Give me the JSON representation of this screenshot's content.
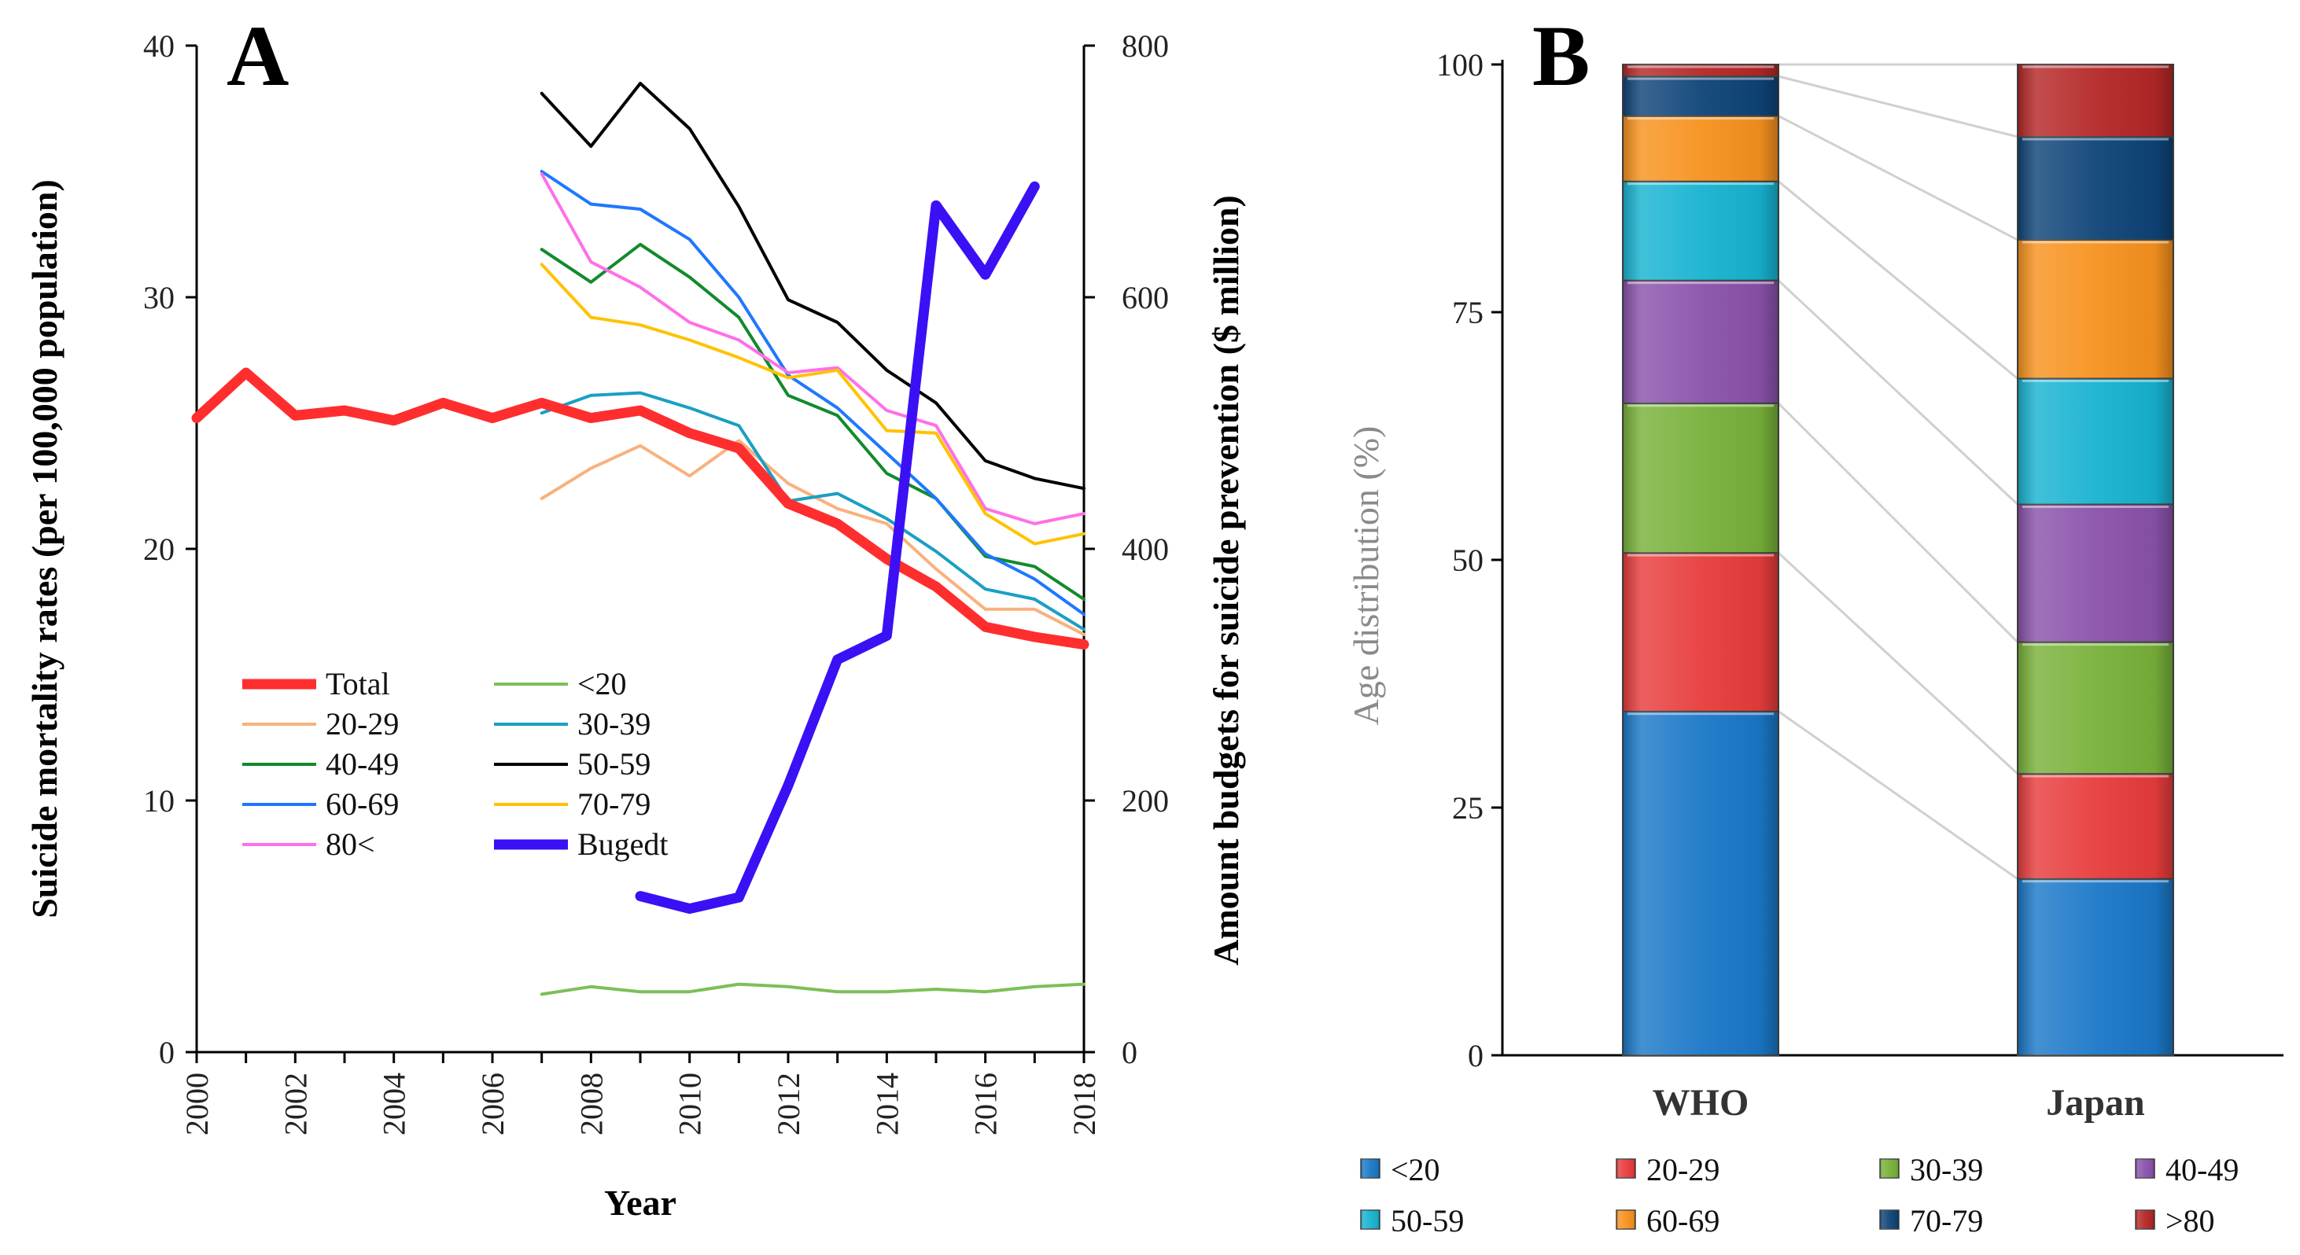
{
  "figure": {
    "panel_a_label": "A",
    "panel_b_label": "B"
  },
  "chart_data": [
    {
      "type": "line",
      "panel": "A",
      "xlabel": "Year",
      "ylabel": "Suicide mortality rates (per 100,000 population)",
      "y2label": "Amount budgets for suicide prevention ($ million)",
      "xlim": [
        2000,
        2018
      ],
      "ylim": [
        0,
        40
      ],
      "y2lim": [
        0,
        800
      ],
      "xticks": [
        2000,
        2002,
        2004,
        2006,
        2008,
        2010,
        2012,
        2014,
        2016,
        2018
      ],
      "yticks": [
        0,
        10,
        20,
        30,
        40
      ],
      "y2ticks": [
        0,
        200,
        400,
        600,
        800
      ],
      "series": [
        {
          "name": "Total",
          "color": "#ff2e2e",
          "thick": true,
          "axis": "left",
          "x": [
            2000,
            2001,
            2002,
            2003,
            2004,
            2005,
            2006,
            2007,
            2008,
            2009,
            2010,
            2011,
            2012,
            2013,
            2014,
            2015,
            2016,
            2017,
            2018
          ],
          "values": [
            25.2,
            27.0,
            25.3,
            25.5,
            25.1,
            25.8,
            25.2,
            25.8,
            25.2,
            25.5,
            24.6,
            24.0,
            21.8,
            21.0,
            19.6,
            18.5,
            16.9,
            16.5,
            16.2
          ]
        },
        {
          "name": "20-29",
          "color": "#f9b17e",
          "thick": false,
          "axis": "left",
          "x": [
            2007,
            2008,
            2009,
            2010,
            2011,
            2012,
            2013,
            2014,
            2015,
            2016,
            2017,
            2018
          ],
          "values": [
            22.0,
            23.2,
            24.1,
            22.9,
            24.3,
            22.6,
            21.6,
            21.0,
            19.2,
            17.6,
            17.6,
            16.6
          ]
        },
        {
          "name": "40-49",
          "color": "#128a2c",
          "thick": false,
          "axis": "left",
          "x": [
            2007,
            2008,
            2009,
            2010,
            2011,
            2012,
            2013,
            2014,
            2015,
            2016,
            2017,
            2018
          ],
          "values": [
            31.9,
            30.6,
            32.1,
            30.8,
            29.2,
            26.1,
            25.3,
            23.0,
            22.0,
            19.7,
            19.3,
            18.0
          ]
        },
        {
          "name": "60-69",
          "color": "#1f77ff",
          "thick": false,
          "axis": "left",
          "x": [
            2007,
            2008,
            2009,
            2010,
            2011,
            2012,
            2013,
            2014,
            2015,
            2016,
            2017,
            2018
          ],
          "values": [
            35.0,
            33.7,
            33.5,
            32.3,
            30.0,
            26.9,
            25.6,
            23.8,
            22.0,
            19.8,
            18.8,
            17.4
          ]
        },
        {
          "name": "80<",
          "color": "#ff6fe8",
          "thick": false,
          "axis": "left",
          "x": [
            2007,
            2008,
            2009,
            2010,
            2011,
            2012,
            2013,
            2014,
            2015,
            2016,
            2017,
            2018
          ],
          "values": [
            34.9,
            31.4,
            30.4,
            29.0,
            28.3,
            27.0,
            27.2,
            25.5,
            24.9,
            21.6,
            21.0,
            21.4
          ]
        },
        {
          "name": "<20",
          "color": "#7dbf58",
          "thick": false,
          "axis": "left",
          "x": [
            2007,
            2008,
            2009,
            2010,
            2011,
            2012,
            2013,
            2014,
            2015,
            2016,
            2017,
            2018
          ],
          "values": [
            2.3,
            2.6,
            2.4,
            2.4,
            2.7,
            2.6,
            2.4,
            2.4,
            2.5,
            2.4,
            2.6,
            2.7
          ]
        },
        {
          "name": "30-39",
          "color": "#1a9fc4",
          "thick": false,
          "axis": "left",
          "x": [
            2007,
            2008,
            2009,
            2010,
            2011,
            2012,
            2013,
            2014,
            2015,
            2016,
            2017,
            2018
          ],
          "values": [
            25.4,
            26.1,
            26.2,
            25.6,
            24.9,
            21.9,
            22.2,
            21.2,
            19.9,
            18.4,
            18.0,
            16.8
          ]
        },
        {
          "name": "50-59",
          "color": "#000000",
          "thick": false,
          "axis": "left",
          "x": [
            2007,
            2008,
            2009,
            2010,
            2011,
            2012,
            2013,
            2014,
            2015,
            2016,
            2017,
            2018
          ],
          "values": [
            38.1,
            36.0,
            38.5,
            36.7,
            33.6,
            29.9,
            29.0,
            27.1,
            25.8,
            23.5,
            22.8,
            22.4
          ]
        },
        {
          "name": "70-79",
          "color": "#ffc200",
          "thick": false,
          "axis": "left",
          "x": [
            2007,
            2008,
            2009,
            2010,
            2011,
            2012,
            2013,
            2014,
            2015,
            2016,
            2017,
            2018
          ],
          "values": [
            31.3,
            29.2,
            28.9,
            28.3,
            27.6,
            26.8,
            27.1,
            24.7,
            24.6,
            21.4,
            20.2,
            20.6
          ]
        },
        {
          "name": "Bugedt",
          "color": "#3b10f5",
          "thick": true,
          "axis": "right",
          "x": [
            2009,
            2010,
            2011,
            2012,
            2013,
            2014,
            2015,
            2016,
            2017
          ],
          "values": [
            124,
            114,
            123,
            212,
            312,
            331,
            673,
            618,
            688
          ]
        }
      ],
      "legend": {
        "placement": "bottom-left",
        "columns": [
          [
            "Total",
            "20-29",
            "40-49",
            "60-69",
            "80<"
          ],
          [
            "<20",
            "30-39",
            "50-59",
            "70-79",
            "Bugedt"
          ]
        ]
      }
    },
    {
      "type": "bar",
      "stacked": true,
      "panel": "B",
      "ylabel": "Age distribution (%)",
      "ylim": [
        0,
        100
      ],
      "yticks": [
        0,
        25,
        50,
        75,
        100
      ],
      "categories": [
        "WHO",
        "Japan"
      ],
      "series": [
        {
          "name": "<20",
          "color": "#1b78c8",
          "values": [
            34.7,
            17.8
          ]
        },
        {
          "name": "20-29",
          "color": "#e83c3c",
          "values": [
            16.0,
            10.6
          ]
        },
        {
          "name": "30-39",
          "color": "#78b13a",
          "values": [
            15.1,
            13.3
          ]
        },
        {
          "name": "40-49",
          "color": "#8a52ab",
          "values": [
            12.4,
            13.9
          ]
        },
        {
          "name": "50-59",
          "color": "#17b3d1",
          "values": [
            10.0,
            12.7
          ]
        },
        {
          "name": "60-69",
          "color": "#f7921e",
          "values": [
            6.6,
            14.0
          ]
        },
        {
          "name": "70-79",
          "color": "#0e4478",
          "values": [
            4.0,
            10.4
          ]
        },
        {
          "name": ">80",
          "color": "#b52727",
          "values": [
            1.2,
            7.3
          ]
        }
      ],
      "legend": {
        "placement": "bottom",
        "rows": [
          [
            "<20",
            "20-29",
            "30-39",
            "40-49"
          ],
          [
            "50-59",
            "60-69",
            "70-79",
            ">80"
          ]
        ]
      }
    }
  ]
}
